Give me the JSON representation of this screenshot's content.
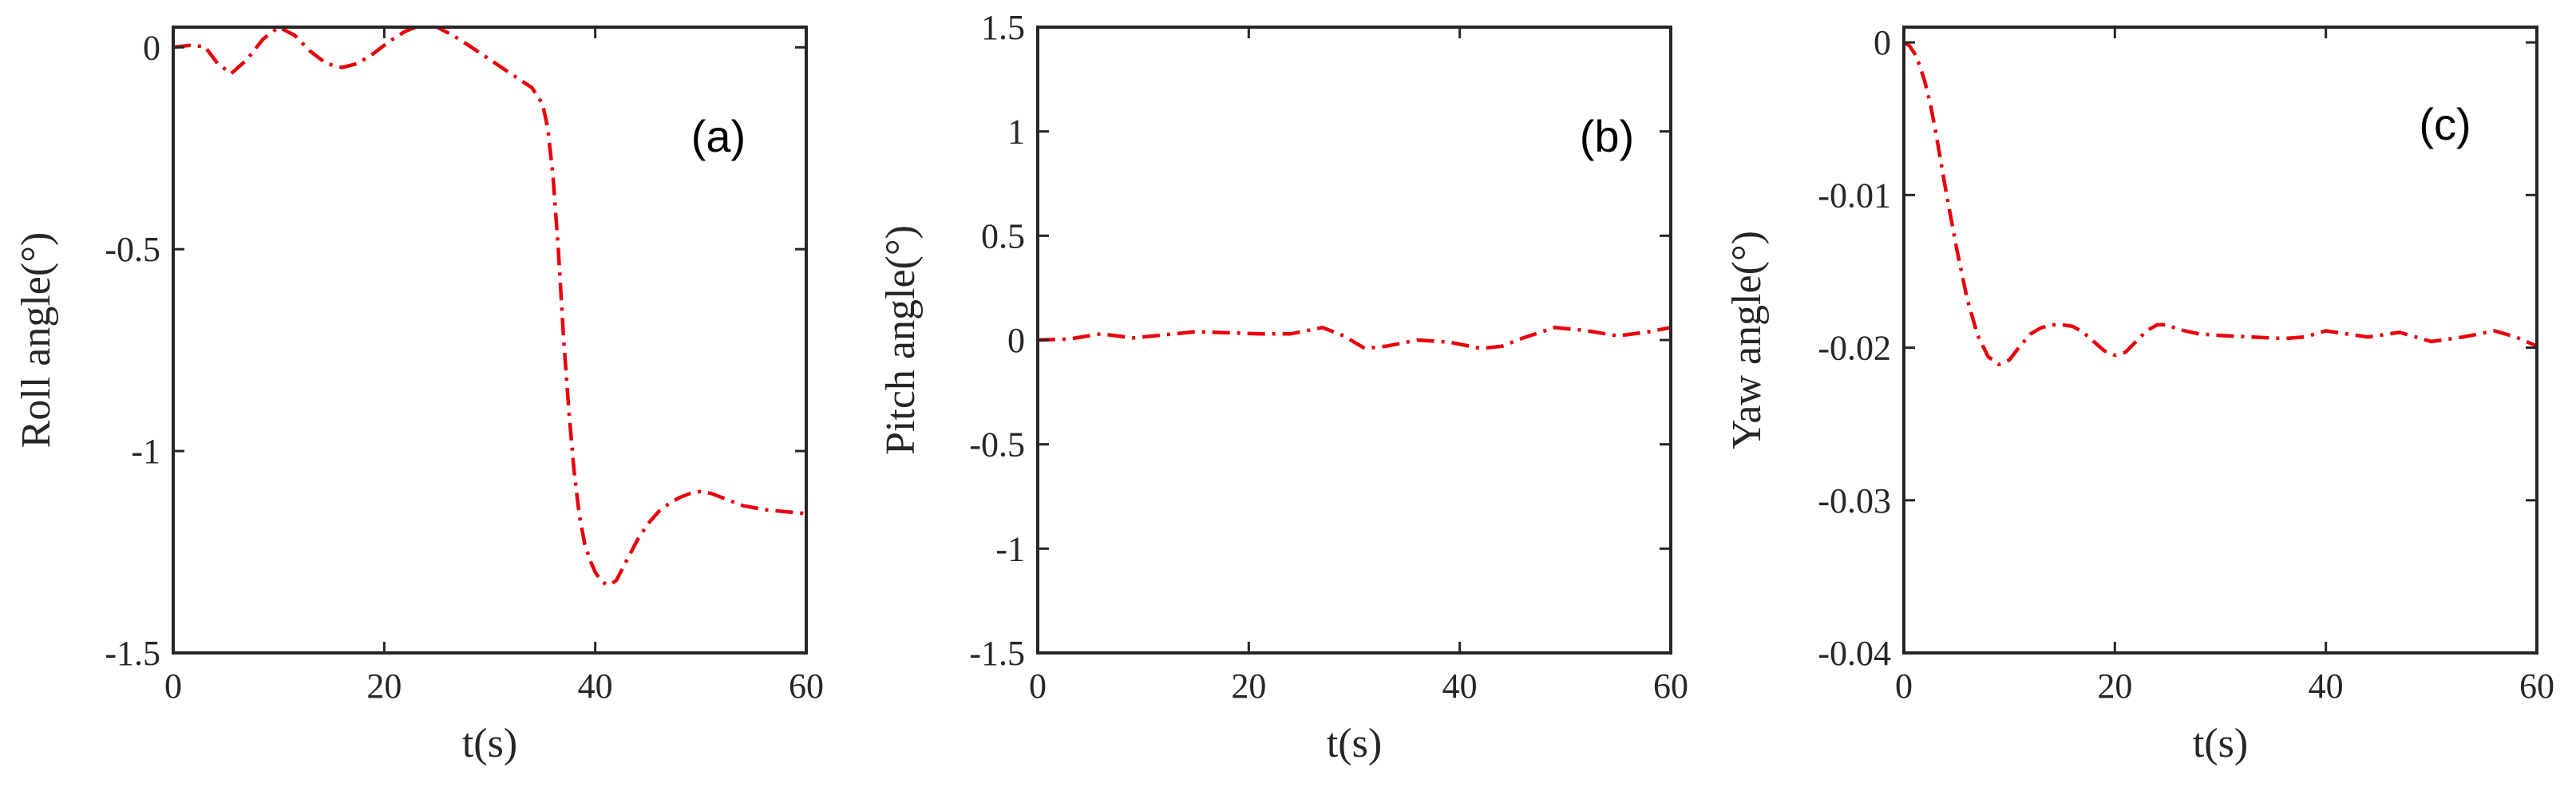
{
  "series_color": "#e8000b",
  "chart_data": [
    {
      "type": "line",
      "panel_label": "(a)",
      "xlabel": "t(s)",
      "ylabel": "Roll angle(°)",
      "xlim": [
        0,
        60
      ],
      "ylim": [
        -1.5,
        0.05
      ],
      "xticks": [
        0,
        20,
        40,
        60
      ],
      "xtick_labels": [
        "0",
        "20",
        "40",
        "60"
      ],
      "yticks": [
        -1.5,
        -1,
        -0.5,
        0
      ],
      "ytick_labels": [
        "-1.5",
        "-1",
        "-0.5",
        "0"
      ],
      "series": [
        {
          "x": [
            0,
            1.5,
            3,
            4.2,
            5.5,
            7,
            8.5,
            10,
            11.5,
            13,
            14.5,
            16,
            17.5,
            19,
            20.5,
            22,
            23.5,
            25,
            26.5,
            28,
            30,
            32,
            34,
            35,
            35.5,
            36,
            36.5,
            37,
            37.5,
            38,
            38.5,
            39,
            39.5,
            40,
            40.5,
            41,
            41.5,
            42,
            43,
            44,
            45,
            46,
            47,
            48,
            49,
            50,
            51,
            52,
            54,
            56,
            58,
            60
          ],
          "y": [
            0,
            0.005,
            0.002,
            -0.04,
            -0.065,
            -0.03,
            0.02,
            0.05,
            0.03,
            -0.01,
            -0.04,
            -0.05,
            -0.04,
            -0.015,
            0.015,
            0.04,
            0.055,
            0.05,
            0.03,
            0.005,
            -0.03,
            -0.065,
            -0.1,
            -0.14,
            -0.2,
            -0.32,
            -0.5,
            -0.72,
            -0.9,
            -1.05,
            -1.16,
            -1.23,
            -1.27,
            -1.3,
            -1.32,
            -1.33,
            -1.33,
            -1.32,
            -1.27,
            -1.22,
            -1.18,
            -1.15,
            -1.13,
            -1.115,
            -1.105,
            -1.1,
            -1.105,
            -1.115,
            -1.135,
            -1.145,
            -1.15,
            -1.155
          ]
        }
      ]
    },
    {
      "type": "line",
      "panel_label": "(b)",
      "xlabel": "t(s)",
      "ylabel": "Pitch angle(°)",
      "xlim": [
        0,
        60
      ],
      "ylim": [
        -1.5,
        1.5
      ],
      "xticks": [
        0,
        20,
        40,
        60
      ],
      "xtick_labels": [
        "0",
        "20",
        "40",
        "60"
      ],
      "yticks": [
        -1.5,
        -1,
        -0.5,
        0,
        0.5,
        1,
        1.5
      ],
      "ytick_labels": [
        "-1.5",
        "-1",
        "-0.5",
        "0",
        "0.5",
        "1",
        "1.5"
      ],
      "series": [
        {
          "x": [
            0,
            3,
            6,
            9,
            12,
            15,
            18,
            21,
            24,
            27,
            29,
            31,
            33,
            36,
            39,
            42,
            44,
            46,
            49,
            52,
            55,
            58,
            60
          ],
          "y": [
            0,
            0.005,
            0.03,
            0.01,
            0.025,
            0.04,
            0.035,
            0.03,
            0.03,
            0.06,
            0.02,
            -0.04,
            -0.03,
            0.0,
            -0.01,
            -0.04,
            -0.03,
            0.01,
            0.06,
            0.045,
            0.02,
            0.04,
            0.06
          ]
        }
      ]
    },
    {
      "type": "line",
      "panel_label": "(c)",
      "xlabel": "t(s)",
      "ylabel": "Yaw angle(°)",
      "xlim": [
        0,
        60
      ],
      "ylim": [
        -0.04,
        0.001
      ],
      "xticks": [
        0,
        20,
        40,
        60
      ],
      "xtick_labels": [
        "0",
        "20",
        "40",
        "60"
      ],
      "yticks": [
        -0.04,
        -0.03,
        -0.02,
        -0.01,
        0
      ],
      "ytick_labels": [
        "-0.04",
        "-0.03",
        "-0.02",
        "-0.01",
        "0"
      ],
      "series": [
        {
          "x": [
            0,
            0.5,
            1,
            1.5,
            2,
            2.5,
            3,
            3.5,
            4,
            5,
            6,
            7,
            8,
            9,
            10,
            11,
            12,
            13,
            14,
            15,
            16,
            17,
            18,
            19,
            20,
            21,
            22,
            23,
            24,
            25,
            26,
            28,
            30,
            33,
            36,
            38,
            40,
            42,
            44,
            47,
            50,
            53,
            56,
            58,
            60
          ],
          "y": [
            0,
            -0.0002,
            -0.0007,
            -0.0015,
            -0.0026,
            -0.004,
            -0.0058,
            -0.0078,
            -0.0098,
            -0.0135,
            -0.0168,
            -0.0192,
            -0.0206,
            -0.0211,
            -0.0208,
            -0.0199,
            -0.0191,
            -0.0187,
            -0.0185,
            -0.0185,
            -0.0186,
            -0.019,
            -0.0196,
            -0.0202,
            -0.0205,
            -0.0203,
            -0.0196,
            -0.0189,
            -0.0185,
            -0.0185,
            -0.0188,
            -0.0191,
            -0.0192,
            -0.0193,
            -0.0194,
            -0.0193,
            -0.0189,
            -0.0191,
            -0.0193,
            -0.019,
            -0.0196,
            -0.0193,
            -0.0189,
            -0.0193,
            -0.0199
          ]
        }
      ]
    }
  ]
}
